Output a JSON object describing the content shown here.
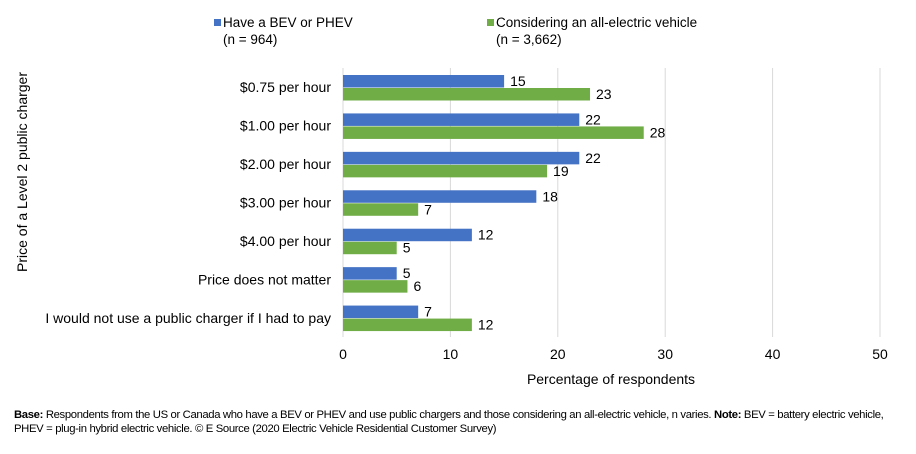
{
  "chart_data": {
    "type": "bar",
    "orientation": "horizontal",
    "categories": [
      "$0.75 per hour",
      "$1.00 per hour",
      "$2.00 per hour",
      "$3.00 per hour",
      "$4.00 per hour",
      "Price does not matter",
      "I would not use a public charger if I had to pay"
    ],
    "series": [
      {
        "name": "Have a BEV or PHEV",
        "sub": "(n = 964)",
        "color": "#4472C4",
        "values": [
          15,
          22,
          22,
          18,
          12,
          5,
          7
        ]
      },
      {
        "name": "Considering an all-electric vehicle",
        "sub": "(n = 3,662)",
        "color": "#70AD47",
        "values": [
          23,
          28,
          19,
          7,
          5,
          6,
          12
        ]
      }
    ],
    "xlabel": "Percentage of respondents",
    "ylabel": "Price of a Level 2 public charger",
    "xlim": [
      0,
      50
    ],
    "xticks": [
      0,
      10,
      20,
      30,
      40,
      50
    ],
    "grid": true,
    "legend": "top"
  },
  "footer": {
    "base_label": "Base:",
    "base_text": " Respondents from the US or Canada who have a BEV  or PHEV and use public chargers and those considering an all-electric vehicle, n varies. ",
    "note_label": "Note:",
    "note_text": " BEV = battery electric vehicle, PHEV = plug-in hybrid electric vehicle. © E Source (2020 Electric Vehicle Residential Customer Survey)"
  }
}
